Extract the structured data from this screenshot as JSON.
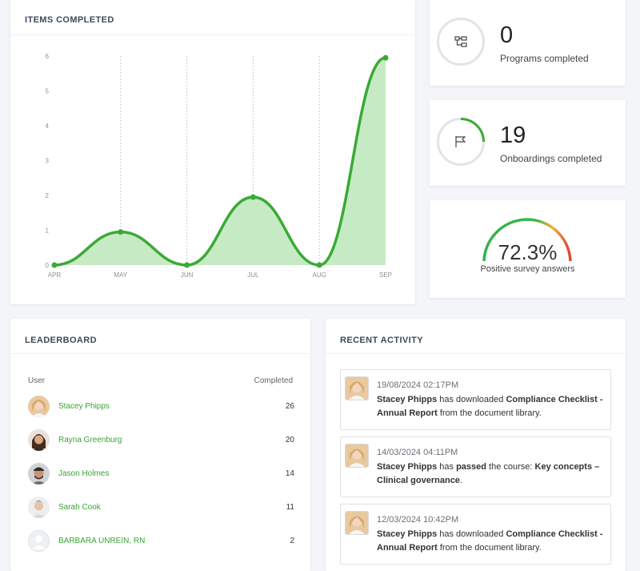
{
  "items_completed": {
    "title": "ITEMS COMPLETED"
  },
  "chart_data": {
    "type": "area",
    "title": "ITEMS COMPLETED",
    "categories": [
      "APR",
      "MAY",
      "JUN",
      "JUL",
      "AUG",
      "SEP"
    ],
    "values": [
      0,
      0.95,
      0,
      1.95,
      0,
      5.95
    ],
    "yticks": [
      "0",
      "1",
      "2",
      "3",
      "4",
      "5",
      "6"
    ],
    "ylim": [
      0,
      6
    ],
    "color": "#3aaa35",
    "fill": "#c6ebc4",
    "grid": "vertical dotted"
  },
  "stats": {
    "programs": {
      "value": "0",
      "label": "Programs completed",
      "icon": "sitemap-icon",
      "progress": 0
    },
    "onboardings": {
      "value": "19",
      "label": "Onboardings completed",
      "icon": "flag-icon",
      "progress": 0.25
    }
  },
  "survey": {
    "value": "72.3%",
    "label": "Positive survey answers",
    "fraction": 0.723
  },
  "leaderboard": {
    "title": "LEADERBOARD",
    "col_user": "User",
    "col_completed": "Completed",
    "rows": [
      {
        "name": "Stacey Phipps",
        "count": "26"
      },
      {
        "name": "Rayna Greenburg",
        "count": "20"
      },
      {
        "name": "Jason Holmes",
        "count": "14"
      },
      {
        "name": "Sarah Cook",
        "count": "11"
      },
      {
        "name": "BARBARA UNREIN, RN",
        "count": "2"
      }
    ]
  },
  "activity": {
    "title": "RECENT ACTIVITY",
    "items": [
      {
        "time": "19/08/2024 02:17PM",
        "actor": "Stacey Phipps",
        "verb": " has downloaded ",
        "object": "Compliance Checklist - Annual Report",
        "suffix": " from the document library."
      },
      {
        "time": "14/03/2024 04:11PM",
        "actor": "Stacey Phipps",
        "verb": " has ",
        "verb_bold": "passed",
        "verb2": " the course: ",
        "object": "Key concepts – Clinical governance",
        "suffix": "."
      },
      {
        "time": "12/03/2024 10:42PM",
        "actor": "Stacey Phipps",
        "verb": " has downloaded ",
        "object": "Compliance Checklist - Annual Report",
        "suffix": " from the document library."
      }
    ]
  }
}
